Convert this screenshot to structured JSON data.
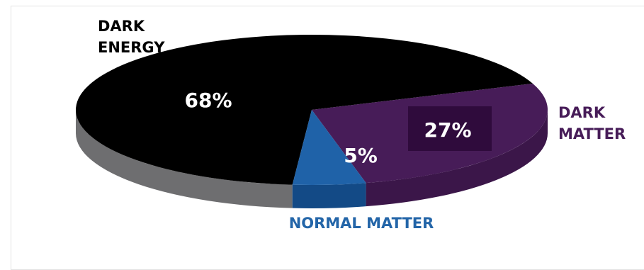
{
  "chart_data": {
    "type": "pie",
    "title": "",
    "categories": [
      "DARK ENERGY",
      "DARK MATTER",
      "NORMAL MATTER"
    ],
    "values": [
      68,
      27,
      5
    ],
    "value_labels": [
      "68%",
      "27%",
      "5%"
    ],
    "category_lines": [
      [
        "DARK",
        "ENERGY"
      ],
      [
        "DARK",
        "MATTER"
      ],
      [
        "NORMAL MATTER"
      ]
    ],
    "colors": {
      "dark_energy": "#000000",
      "dark_energy_side": "#6e6e70",
      "dark_matter": "#471c58",
      "dark_matter_side": "#3b1649",
      "dark_matter_label_box": "#2f0b3c",
      "normal_matter": "#1f62a8",
      "normal_matter_side": "#134a86",
      "dark_matter_text": "#471c58",
      "normal_matter_text": "#2365a8"
    },
    "style": "3d"
  }
}
